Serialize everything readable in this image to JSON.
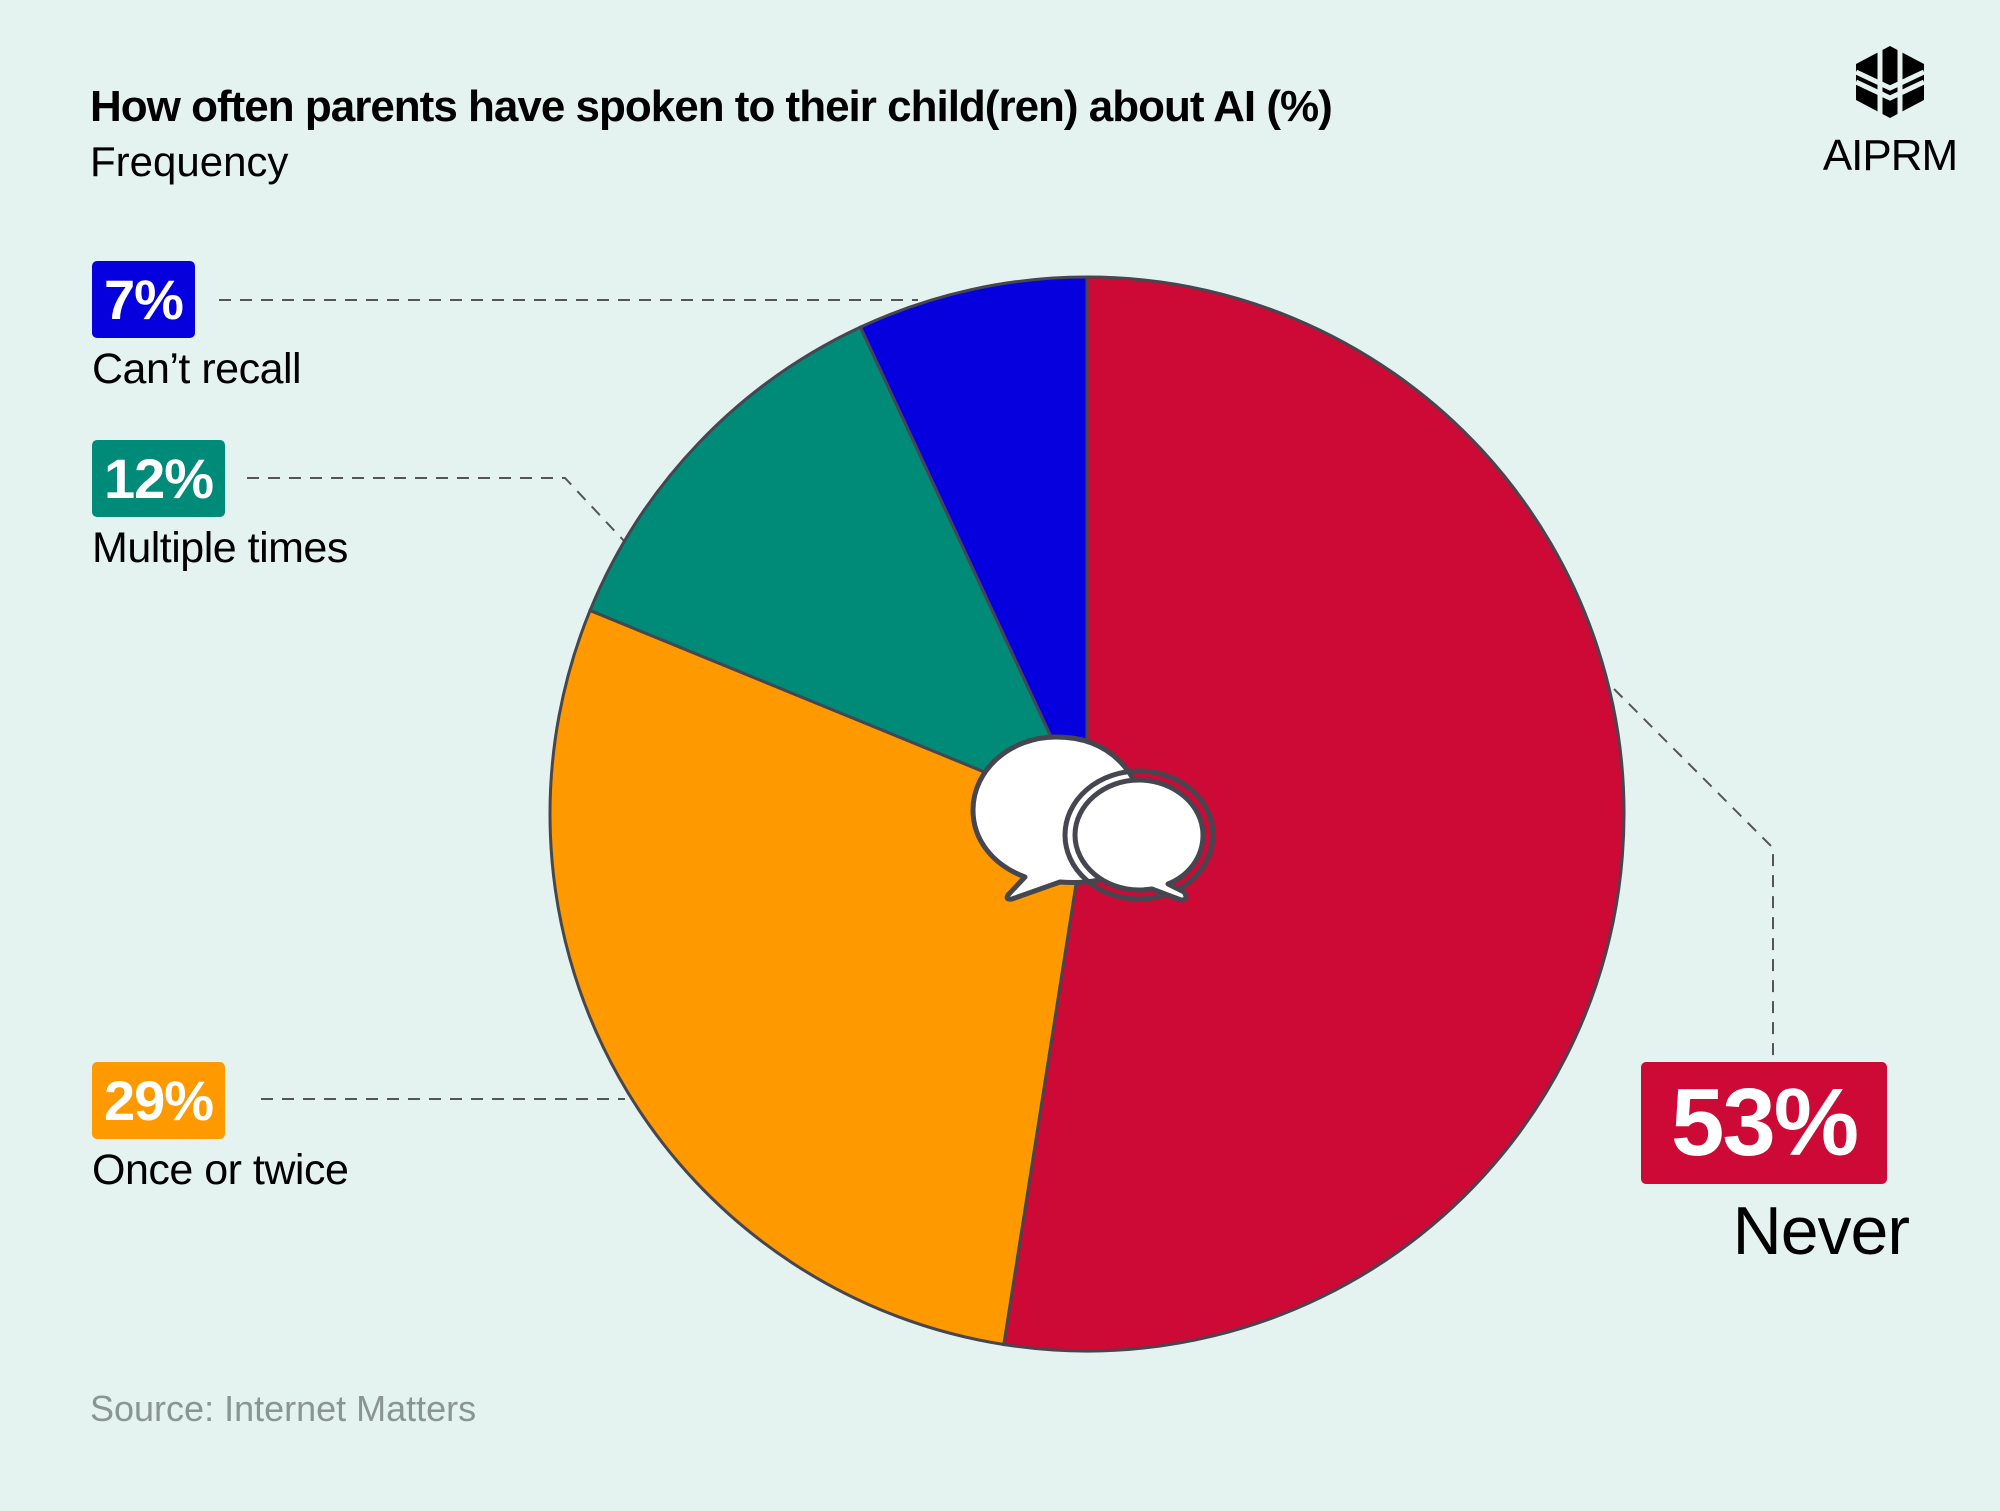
{
  "chart_data": {
    "type": "pie",
    "title": "How often parents have spoken to their child(ren) about AI (%)",
    "subtitle": "Frequency",
    "source": "Source: Internet Matters",
    "slices": [
      {
        "label": "Never",
        "value": 53,
        "value_label": "53%",
        "color": "#CC0A35"
      },
      {
        "label": "Once or twice",
        "value": 29,
        "value_label": "29%",
        "color": "#FF9900"
      },
      {
        "label": "Multiple times",
        "value": 12,
        "value_label": "12%",
        "color": "#008A78"
      },
      {
        "label": "Can’t recall",
        "value": 7,
        "value_label": "7%",
        "color": "#0600DF"
      }
    ],
    "start": "top",
    "direction": "clockwise"
  },
  "brand": {
    "name": "AIPRM"
  },
  "colors": {
    "background": "#E4F3EF",
    "outline": "#464650"
  }
}
